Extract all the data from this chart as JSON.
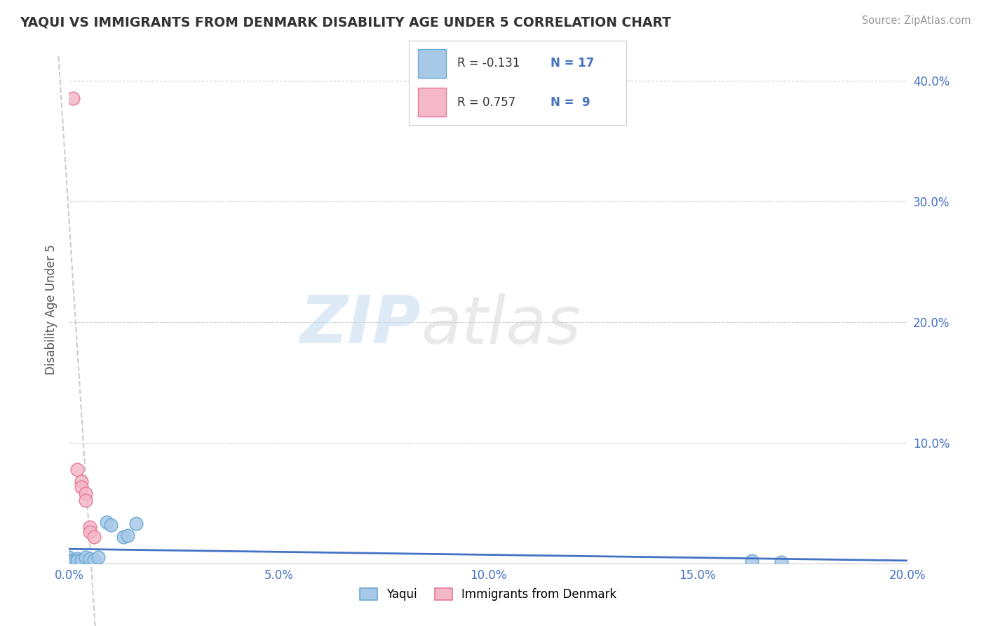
{
  "title": "YAQUI VS IMMIGRANTS FROM DENMARK DISABILITY AGE UNDER 5 CORRELATION CHART",
  "source": "Source: ZipAtlas.com",
  "ylabel": "Disability Age Under 5",
  "watermark_zip": "ZIP",
  "watermark_atlas": "atlas",
  "yaqui_x": [
    0.0,
    0.001,
    0.001,
    0.002,
    0.002,
    0.003,
    0.004,
    0.005,
    0.006,
    0.007,
    0.009,
    0.01,
    0.013,
    0.014,
    0.016,
    0.163,
    0.17
  ],
  "yaqui_y": [
    0.005,
    0.003,
    0.002,
    0.004,
    0.002,
    0.003,
    0.005,
    0.004,
    0.003,
    0.005,
    0.034,
    0.032,
    0.022,
    0.023,
    0.033,
    0.002,
    0.001
  ],
  "denmark_x": [
    0.001,
    0.002,
    0.003,
    0.003,
    0.004,
    0.004,
    0.005,
    0.005,
    0.006
  ],
  "denmark_y": [
    0.385,
    0.078,
    0.068,
    0.063,
    0.058,
    0.052,
    0.03,
    0.026,
    0.022
  ],
  "yaqui_color": "#a8c8e8",
  "denmark_color": "#f4b8c8",
  "yaqui_edge": "#6aaad4",
  "denmark_edge": "#e87898",
  "trend_yaqui_color": "#4472c4",
  "trend_denmark_color": "#e06080",
  "R_yaqui": -0.131,
  "N_yaqui": 17,
  "R_denmark": 0.757,
  "N_denmark": 9,
  "xlim": [
    0.0,
    0.2
  ],
  "ylim": [
    0.0,
    0.42
  ],
  "xticks": [
    0.0,
    0.05,
    0.1,
    0.15,
    0.2
  ],
  "yticks": [
    0.0,
    0.1,
    0.2,
    0.3,
    0.4
  ],
  "xtick_labels": [
    "0.0%",
    "5.0%",
    "10.0%",
    "15.0%",
    "20.0%"
  ],
  "ytick_labels": [
    "",
    "10.0%",
    "20.0%",
    "30.0%",
    "40.0%"
  ],
  "right_ytick_labels": [
    "40.0%",
    "30.0%",
    "20.0%",
    "10.0%"
  ],
  "legend_labels": [
    "Yaqui",
    "Immigrants from Denmark"
  ],
  "background_color": "#ffffff",
  "grid_color": "#cccccc",
  "tick_color": "#4472c4",
  "title_color": "#333333",
  "source_color": "#999999"
}
